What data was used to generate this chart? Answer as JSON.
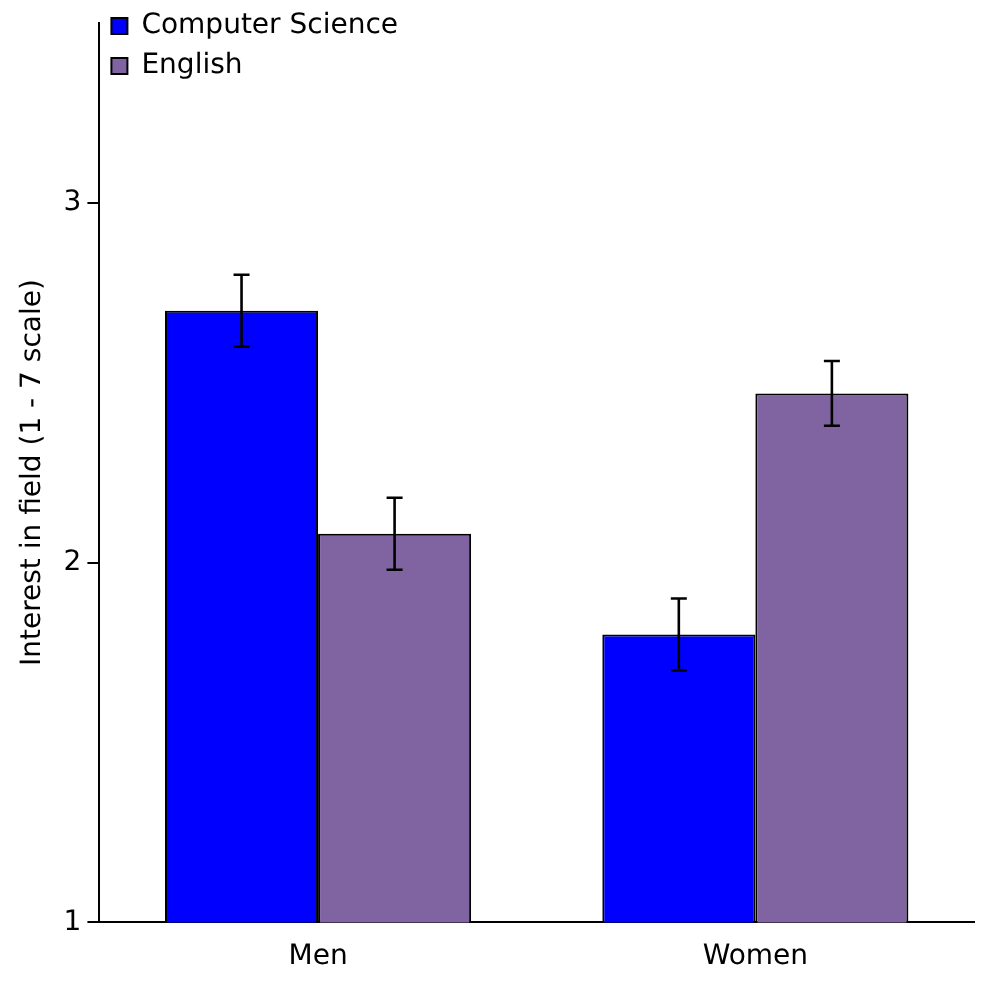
{
  "chart_data": {
    "type": "bar",
    "ylabel": "Interest in field (1 - 7 scale)",
    "categories": [
      "Men",
      "Women"
    ],
    "series": [
      {
        "name": "Computer Science",
        "color": "#0000ff",
        "values": [
          2.7,
          1.8
        ],
        "errors": [
          0.1,
          0.1
        ]
      },
      {
        "name": "English",
        "color": "#8064a2",
        "values": [
          2.08,
          2.47
        ],
        "errors": [
          0.1,
          0.09
        ]
      }
    ],
    "ylim": [
      1,
      3.5
    ],
    "yticks": [
      1,
      2,
      3
    ],
    "grid": false,
    "legend": "top left"
  }
}
